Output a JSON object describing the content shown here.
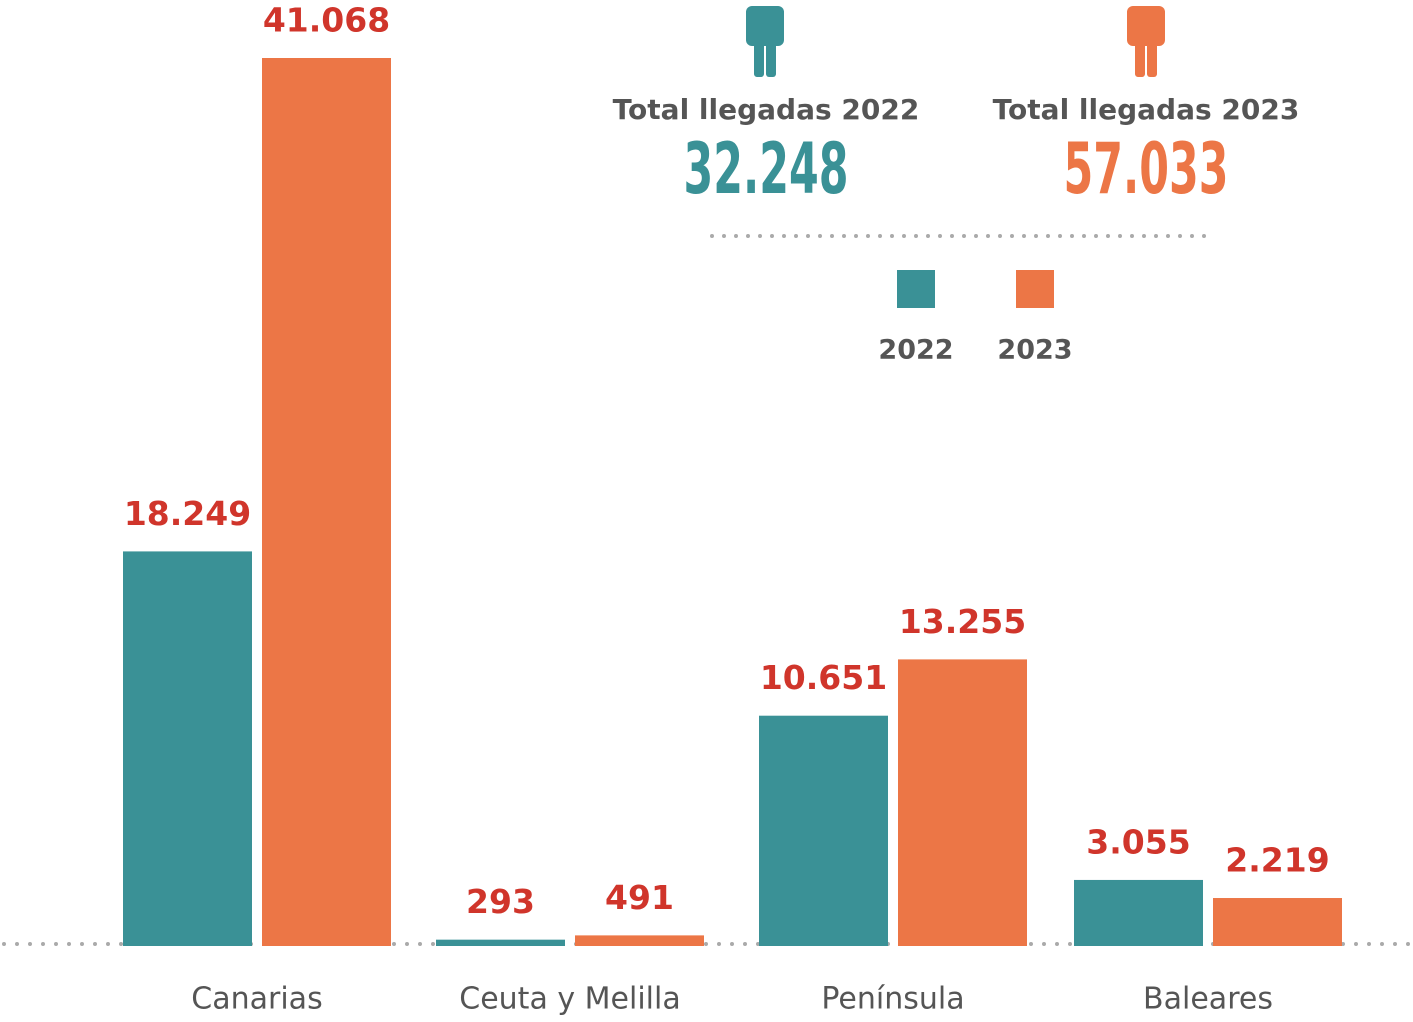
{
  "chart_data": {
    "type": "bar",
    "categories": [
      "Canarias",
      "Ceuta y Melilla",
      "Península",
      "Baleares"
    ],
    "series": [
      {
        "name": "2022",
        "color": "#3a9196",
        "values": [
          18249,
          293,
          10651,
          3055
        ],
        "value_labels": [
          "18.249",
          "293",
          "10.651",
          "3.055"
        ]
      },
      {
        "name": "2023",
        "color": "#ec7646",
        "values": [
          41068,
          491,
          13255,
          2219
        ],
        "value_labels": [
          "41.068",
          "491",
          "13.255",
          "2.219"
        ]
      }
    ],
    "annotations": [
      {
        "label": "Total llegadas 2022",
        "total": "32.248"
      },
      {
        "label": "Total llegadas 2023",
        "total": "57.033"
      }
    ]
  }
}
